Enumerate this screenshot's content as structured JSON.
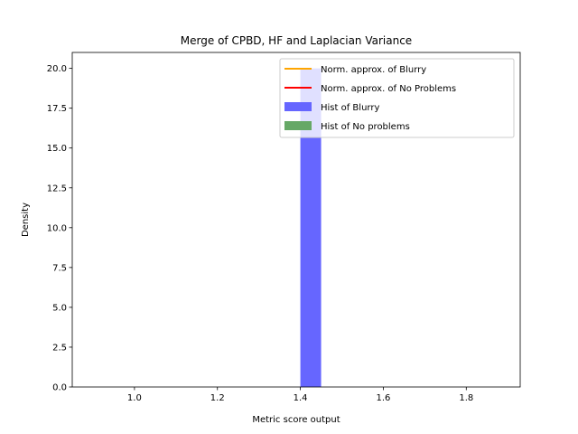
{
  "chart_data": {
    "type": "bar",
    "title": "Merge of CPBD, HF and Laplacian Variance",
    "xlabel": "Metric score output",
    "ylabel": "Density",
    "xlim": [
      0.85,
      1.93
    ],
    "ylim": [
      0,
      21
    ],
    "xticks": [
      1.0,
      1.2,
      1.4,
      1.6,
      1.8
    ],
    "xtick_labels": [
      "1.0",
      "1.2",
      "1.4",
      "1.6",
      "1.8"
    ],
    "yticks": [
      0,
      2.5,
      5,
      7.5,
      10,
      12.5,
      15,
      17.5,
      20
    ],
    "ytick_labels": [
      "0.0",
      "2.5",
      "5.0",
      "7.5",
      "10.0",
      "12.5",
      "15.0",
      "17.5",
      "20.0"
    ],
    "grid": false,
    "legend_position": "top-right",
    "series": [
      {
        "name": "Norm. approx. of Blurry",
        "kind": "line",
        "color": "#ffa500",
        "values": []
      },
      {
        "name": "Norm. approx. of No Problems",
        "kind": "line",
        "color": "#ff0000",
        "values": []
      },
      {
        "name": "Hist of Blurry",
        "kind": "bar",
        "color": "#6666ff",
        "bins": [
          {
            "x0": 1.4,
            "x1": 1.45,
            "value": 20
          }
        ]
      },
      {
        "name": "Hist of No problems",
        "kind": "bar",
        "color": "#66a866",
        "bins": []
      }
    ]
  }
}
